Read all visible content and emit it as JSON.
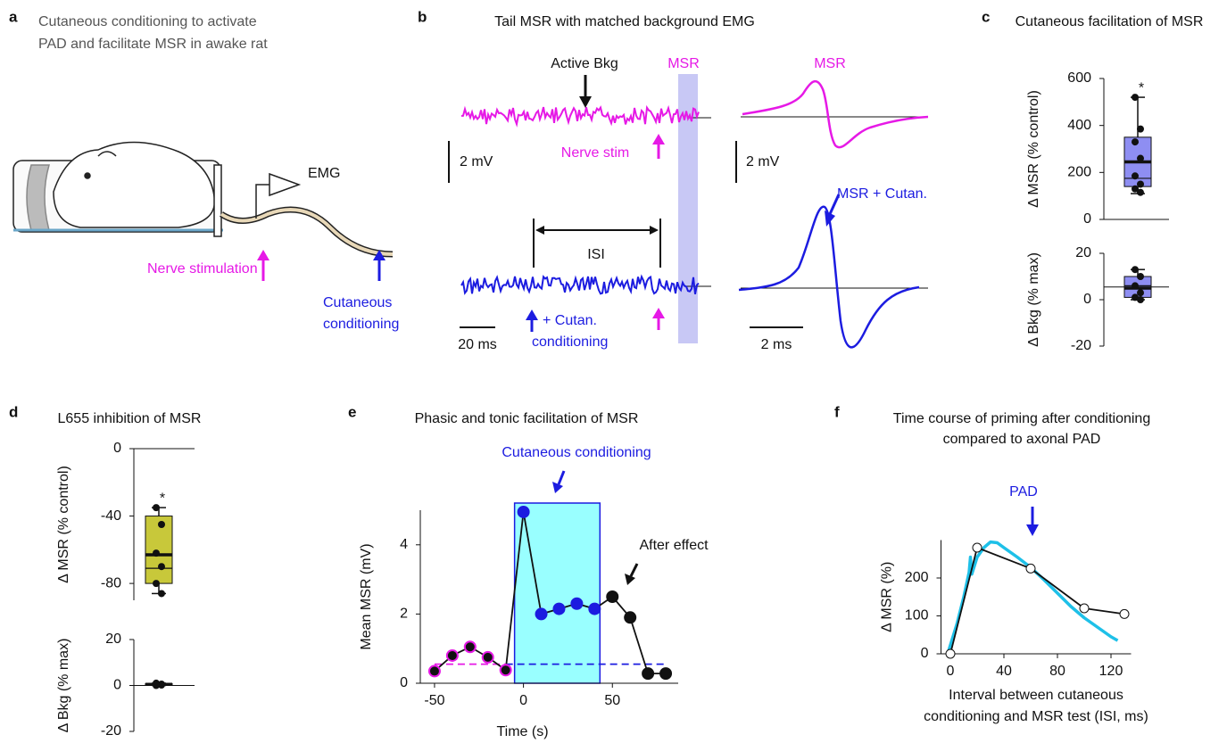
{
  "figure": {
    "a": {
      "letter": "a",
      "title_lines": [
        "Cutaneous conditioning to activate",
        "PAD and facilitate MSR in awake rat"
      ],
      "emg": "EMG",
      "nerve_stim": "Nerve stimulation",
      "cutaneous": [
        "Cutaneous",
        "conditioning"
      ]
    },
    "b": {
      "letter": "b",
      "title": "Tail MSR with matched background EMG",
      "active_bkg": "Active Bkg",
      "msr": "MSR",
      "nerve_stim": "Nerve stim",
      "scale_mv_left": "2 mV",
      "scale_mv_right": "2 mV",
      "msr_right": "MSR",
      "msr_cutan": "MSR + Cutan.",
      "isi": "ISI",
      "scale_ms_left": "20 ms",
      "cutan_cond": [
        "+ Cutan.",
        "conditioning"
      ],
      "scale_ms_right": "2 ms"
    },
    "c": {
      "letter": "c"
    },
    "d": {
      "letter": "d"
    },
    "e": {
      "letter": "e"
    },
    "f": {
      "letter": "f"
    }
  },
  "chart_data": [
    {
      "type": "box",
      "title": "Cutaneous facilitation of MSR",
      "ylabel": "Δ MSR (% control)",
      "ylim": [
        0,
        600
      ],
      "yticks": [
        0,
        200,
        400,
        600
      ],
      "color": "#8e8ef2",
      "reference": 0,
      "box": {
        "min": 110,
        "q1": 140,
        "median": 175,
        "mean": 245,
        "q3": 350,
        "max": 520
      },
      "points": [
        520,
        385,
        330,
        260,
        185,
        150,
        130,
        115
      ],
      "annotation": "*"
    },
    {
      "type": "box",
      "ylabel": "Δ Bkg (% max)",
      "ylim": [
        -20,
        20
      ],
      "yticks": [
        -20,
        0,
        20
      ],
      "color": "#8e8ef2",
      "reference": 5.5,
      "box": {
        "min": 0,
        "q1": 1,
        "median": 6,
        "mean": 5,
        "q3": 10,
        "max": 13
      },
      "points": [
        13,
        10,
        6,
        3,
        1,
        0
      ]
    },
    {
      "type": "box",
      "title": "L655 inhibition of MSR",
      "ylabel": "Δ MSR (% control)",
      "ylim": [
        -90,
        0
      ],
      "yticks": [
        -80,
        -40,
        0
      ],
      "color": "#c8c83a",
      "reference": 0,
      "box": {
        "min": -86,
        "q1": -80,
        "median": -71,
        "mean": -63,
        "q3": -40,
        "max": -35
      },
      "points": [
        -35,
        -45,
        -62,
        -70,
        -80,
        -86
      ],
      "annotation": "*"
    },
    {
      "type": "box",
      "ylabel": "Δ Bkg (% max)",
      "ylim": [
        -20,
        20
      ],
      "yticks": [
        -20,
        0,
        20
      ],
      "color": "#111111",
      "reference": 0,
      "box": {
        "min": 0,
        "q1": 0.2,
        "median": 0.5,
        "mean": 0.5,
        "q3": 0.8,
        "max": 1
      },
      "points": [
        1,
        0.6,
        0.4,
        0.2,
        0
      ]
    },
    {
      "type": "line",
      "title": "Phasic and tonic facilitation of MSR",
      "xlabel": "Time (s)",
      "ylabel": "Mean MSR (mV)",
      "x": [
        -50,
        -40,
        -30,
        -20,
        -10,
        0,
        10,
        20,
        30,
        40,
        50,
        60,
        70,
        80
      ],
      "values": [
        0.35,
        0.8,
        1.05,
        0.75,
        0.38,
        4.95,
        2.0,
        2.15,
        2.3,
        2.15,
        2.5,
        1.9,
        0.28,
        0.28
      ],
      "color": "#111111",
      "marker_fill": [
        "#111111",
        "#111111",
        "#111111",
        "#111111",
        "#111111",
        "#1c1ce0",
        "#1c1ce0",
        "#1c1ce0",
        "#1c1ce0",
        "#1c1ce0",
        "#111111",
        "#111111",
        "#111111",
        "#111111"
      ],
      "marker_edge": [
        "#e619e6",
        "#e619e6",
        "#e619e6",
        "#e619e6",
        "#e619e6",
        "#1c1ce0",
        "#1c1ce0",
        "#1c1ce0",
        "#1c1ce0",
        "#1c1ce0",
        "#111111",
        "#111111",
        "#111111",
        "#111111"
      ],
      "xlim": [
        -58,
        87
      ],
      "ylim": [
        0,
        5
      ],
      "xticks": [
        -50,
        0,
        50
      ],
      "yticks": [
        0,
        2,
        4
      ],
      "shade": {
        "x": [
          -5,
          43
        ],
        "color": "#99ffff",
        "edge": "#1c1ce0"
      },
      "baselines": [
        {
          "value": 0.55,
          "x": [
            -50,
            -10
          ],
          "color": "#e619e6"
        },
        {
          "value": 0.55,
          "x": [
            -10,
            80
          ],
          "color": "#1c1ce0"
        }
      ],
      "annotations": [
        {
          "text": "Cutaneous conditioning",
          "color": "#1c1ce0"
        },
        {
          "text": "After effect",
          "color": "#111111"
        }
      ]
    },
    {
      "type": "line",
      "title": [
        "Time course of priming after conditioning",
        "compared to axonal PAD"
      ],
      "xlabel": [
        "Interval between cutaneous",
        "conditioning and MSR test (ISI, ms)"
      ],
      "ylabel": "Δ MSR (%)",
      "xlim": [
        -7,
        135
      ],
      "ylim": [
        0,
        300
      ],
      "xticks": [
        0,
        40,
        80,
        120
      ],
      "yticks": [
        0,
        100,
        200
      ],
      "series": [
        {
          "color": "#1ec0e8",
          "x": [
            -2,
            5,
            10,
            14,
            15,
            16,
            20,
            25,
            30,
            35,
            40,
            50,
            60,
            70,
            80,
            90,
            100,
            110,
            120,
            125
          ],
          "values": [
            0,
            80,
            150,
            215,
            255,
            210,
            255,
            280,
            295,
            293,
            280,
            255,
            228,
            195,
            160,
            125,
            95,
            70,
            45,
            35
          ]
        },
        {
          "color": "#111111",
          "x": [
            0,
            20,
            60,
            100,
            130
          ],
          "values": [
            0,
            280,
            225,
            120,
            105
          ],
          "markers": true
        }
      ],
      "annotations": [
        {
          "text": "PAD",
          "color": "#1c1ce0"
        }
      ]
    }
  ]
}
